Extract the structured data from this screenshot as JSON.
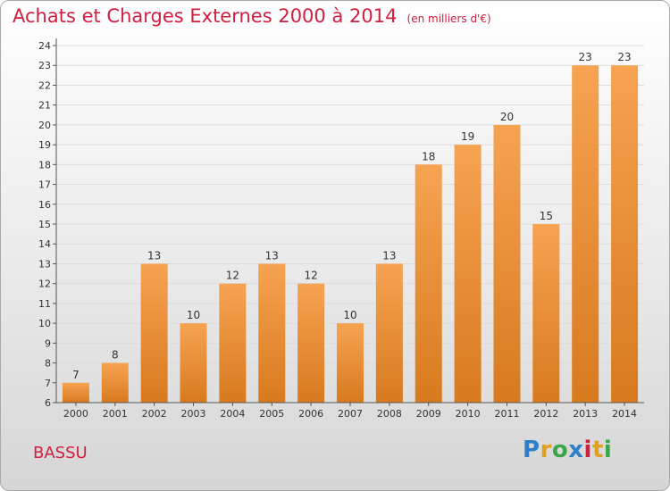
{
  "header": {
    "title": "Achats et Charges Externes 2000 à 2014",
    "subtitle": "(en milliers d'€)"
  },
  "footer": {
    "commune": "BASSU",
    "logo_text": "Proxiti"
  },
  "colors": {
    "bar_top": "#f6a352",
    "bar_bottom": "#d87a1e",
    "title": "#d0203f",
    "grid": "#dcdcdc"
  },
  "chart_data": {
    "type": "bar",
    "categories": [
      "2000",
      "2001",
      "2002",
      "2003",
      "2004",
      "2005",
      "2006",
      "2007",
      "2008",
      "2009",
      "2010",
      "2011",
      "2012",
      "2013",
      "2014"
    ],
    "values": [
      7,
      8,
      13,
      10,
      12,
      13,
      12,
      10,
      13,
      18,
      19,
      20,
      15,
      23,
      23
    ],
    "ylim": [
      6,
      24
    ],
    "yticks": [
      6,
      7,
      8,
      9,
      10,
      11,
      12,
      13,
      14,
      15,
      16,
      17,
      18,
      19,
      20,
      21,
      22,
      23,
      24
    ],
    "grid": true,
    "legend": "none"
  }
}
